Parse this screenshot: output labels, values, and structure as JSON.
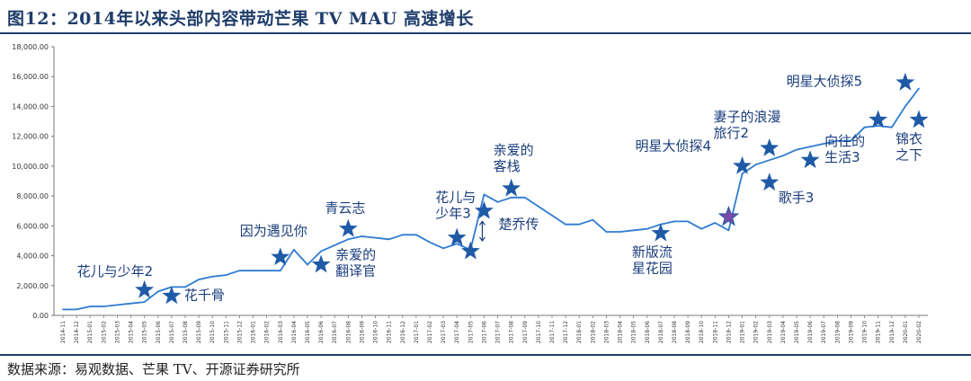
{
  "title": "图12：2014年以来头部内容带动芒果 TV MAU 高速增长",
  "source": "数据来源：易观数据、芒果 TV、开源证券研究所",
  "colors": {
    "line": "#2e7bd1",
    "star": "#1f5aa6",
    "text": "#1a3d7c",
    "rule": "#1f3d6b",
    "highlight_star": "#7a4aa8"
  },
  "chart_data": {
    "type": "line",
    "title": "",
    "xlabel": "",
    "ylabel": "",
    "ylim": [
      0,
      18000
    ],
    "yticks": [
      "0.00",
      "2,000.00",
      "4,000.00",
      "6,000.00",
      "8,000.00",
      "10,000.00",
      "12,000.00",
      "14,000.00",
      "16,000.00",
      "18,000.00"
    ],
    "grid": false,
    "legend": "none",
    "x": [
      "2014-11",
      "2014-12",
      "2015-01",
      "2015-02",
      "2015-03",
      "2015-04",
      "2015-05",
      "2015-06",
      "2015-07",
      "2015-08",
      "2015-09",
      "2015-10",
      "2015-11",
      "2015-12",
      "2016-01",
      "2016-02",
      "2016-03",
      "2016-04",
      "2016-05",
      "2016-06",
      "2016-07",
      "2016-08",
      "2016-09",
      "2016-10",
      "2016-11",
      "2016-12",
      "2017-01",
      "2017-02",
      "2017-03",
      "2017-04",
      "2017-05",
      "2017-06",
      "2017-07",
      "2017-08",
      "2017-09",
      "2017-10",
      "2017-11",
      "2017-12",
      "2018-01",
      "2018-02",
      "2018-03",
      "2018-04",
      "2018-05",
      "2018-06",
      "2018-07",
      "2018-08",
      "2018-09",
      "2018-10",
      "2018-11",
      "2018-12",
      "2019-01",
      "2019-02",
      "2019-03",
      "2019-04",
      "2019-05",
      "2019-06",
      "2019-07",
      "2019-08",
      "2019-09",
      "2019-10",
      "2019-11",
      "2019-12",
      "2020-01",
      "2020-02"
    ],
    "values": [
      400,
      400,
      600,
      600,
      700,
      800,
      900,
      1600,
      1900,
      1900,
      2400,
      2600,
      2700,
      3000,
      3000,
      3000,
      3000,
      4400,
      3400,
      4300,
      4700,
      5100,
      5300,
      5200,
      5100,
      5400,
      5400,
      4900,
      4500,
      4800,
      4400,
      8100,
      7600,
      7900,
      7900,
      7300,
      6700,
      6100,
      6100,
      6400,
      5600,
      5600,
      5700,
      5800,
      6100,
      6300,
      6300,
      5800,
      6200,
      5700,
      9500,
      10100,
      10400,
      10700,
      11100,
      11300,
      11500,
      11700,
      11700,
      12600,
      12700,
      12600,
      14000,
      15200
    ],
    "annotations": [
      {
        "text": "花儿与少年2",
        "star_x": "2015-05",
        "star_y": 1700
      },
      {
        "text": "花千骨",
        "star_x": "2015-07",
        "star_y": 1300
      },
      {
        "text": "因为遇见你",
        "star_x": "2016-03",
        "star_y": 3900
      },
      {
        "text": "亲爱的\n翻译官",
        "star_x": "2016-06",
        "star_y": 3400
      },
      {
        "text": "青云志",
        "star_x": "2016-08",
        "star_y": 5800
      },
      {
        "text": "花儿与\n少年3",
        "star_x": "2017-04",
        "star_y": 5200
      },
      {
        "text": "楚乔传",
        "star_x": "2017-06",
        "star_y": 7000
      },
      {
        "text": "亲爱的\n客栈",
        "star_x": "2017-08",
        "star_y": 8500
      },
      {
        "text": "",
        "star_x": "2017-05",
        "star_y": 4300
      },
      {
        "text": "新版流\n星花园",
        "star_x": "2018-07",
        "star_y": 5500
      },
      {
        "text": "明星大侦探4",
        "star_x": "2018-12",
        "star_y": 6600
      },
      {
        "text": "妻子的浪漫\n旅行2",
        "star_x": "2019-01",
        "star_y": 10000
      },
      {
        "text": "歌手3",
        "star_x": "2019-03",
        "star_y": 8900
      },
      {
        "text": "",
        "star_x": "2019-03",
        "star_y": 11200
      },
      {
        "text": "向往的\n生活3",
        "star_x": "2019-06",
        "star_y": 10400
      },
      {
        "text": "明星大侦探5",
        "star_x": "2019-11",
        "star_y": 13100
      },
      {
        "text": "",
        "star_x": "2020-01",
        "star_y": 15600
      },
      {
        "text": "锦衣\n之下",
        "star_x": "2020-02",
        "star_y": 13100
      }
    ]
  }
}
